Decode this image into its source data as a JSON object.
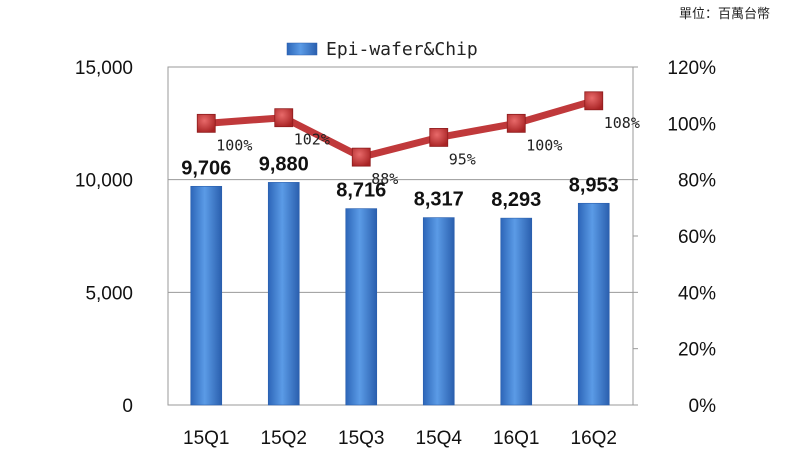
{
  "unit_note": "單位：百萬台幣",
  "chart_data": {
    "type": "bar",
    "categories": [
      "15Q1",
      "15Q2",
      "15Q3",
      "15Q4",
      "16Q1",
      "16Q2"
    ],
    "series": [
      {
        "name": "Epi-wafer&Chip",
        "type": "bar",
        "axis": "left",
        "values": [
          9706,
          9880,
          8716,
          8317,
          8293,
          8953
        ],
        "labels": [
          "9,706",
          "9,880",
          "8,716",
          "8,317",
          "8,293",
          "8,953"
        ],
        "color": "#3f7fd0"
      },
      {
        "type": "line",
        "axis": "right",
        "values": [
          100,
          102,
          88,
          95,
          100,
          108
        ],
        "labels": [
          "100%",
          "102%",
          "88%",
          "95%",
          "100%",
          "108%"
        ],
        "color": "#c0393b"
      }
    ],
    "y_left": {
      "range": [
        0,
        15000
      ],
      "ticks": [
        0,
        5000,
        10000,
        15000
      ],
      "tick_labels": [
        "0",
        "5,000",
        "10,000",
        "15,000"
      ]
    },
    "y_right": {
      "range": [
        0,
        120
      ],
      "ticks": [
        0,
        20,
        40,
        60,
        80,
        100,
        120
      ],
      "tick_labels": [
        "0%",
        "20%",
        "40%",
        "60%",
        "80%",
        "100%",
        "120%"
      ]
    },
    "grid": "horizontal-major",
    "legend": "top-center"
  }
}
